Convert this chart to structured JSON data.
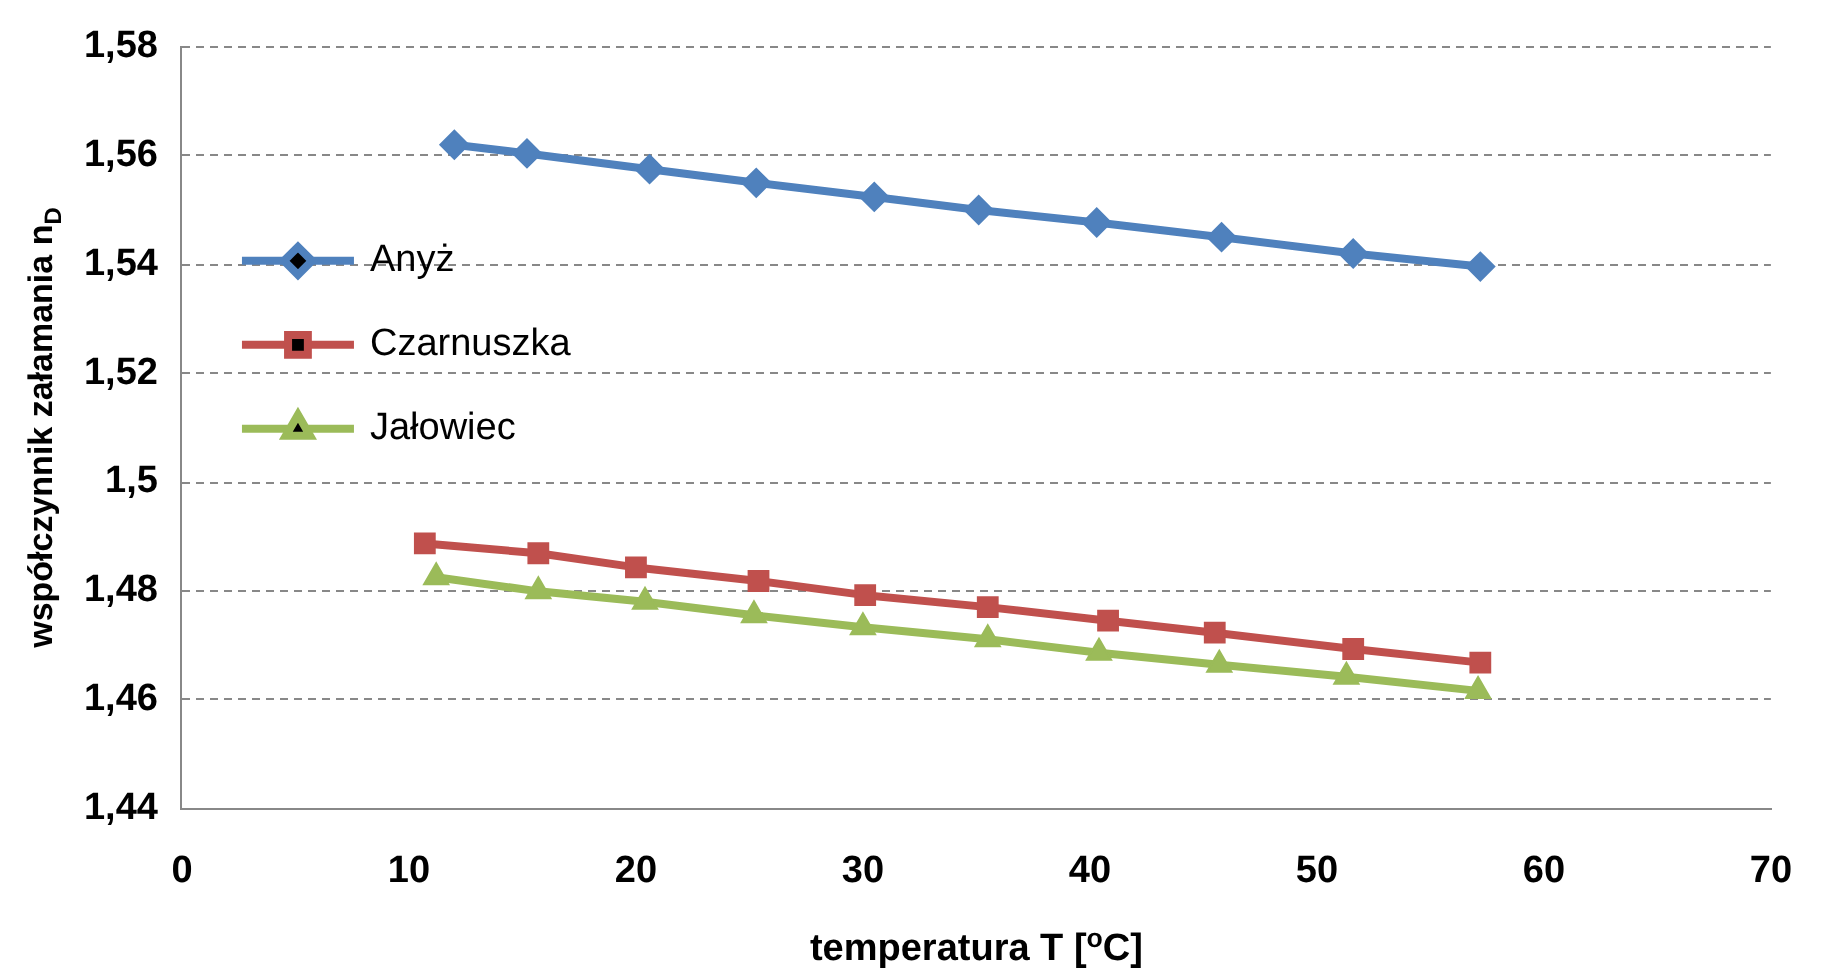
{
  "chart_data": {
    "type": "line",
    "xlabel": "temperatura T [$^{o}$C]",
    "ylabel": "współczynnik załamania n$_{D}$",
    "xlim": [
      0,
      70
    ],
    "xticks": [
      0,
      10,
      20,
      30,
      40,
      50,
      60,
      70
    ],
    "ylim": [
      1.44,
      1.58
    ],
    "yticks": [
      {
        "value": 1.44,
        "label": "1,44"
      },
      {
        "value": 1.46,
        "label": "1,46"
      },
      {
        "value": 1.48,
        "label": "1,48"
      },
      {
        "value": 1.5,
        "label": "1,5"
      },
      {
        "value": 1.52,
        "label": "1,52"
      },
      {
        "value": 1.54,
        "label": "1,54"
      },
      {
        "value": 1.56,
        "label": "1,56"
      },
      {
        "value": 1.58,
        "label": "1,58"
      }
    ],
    "grid": "y",
    "legend": "left",
    "line_style": "solid",
    "series": [
      {
        "name": "Anyż",
        "color": "#4f81bd",
        "marker": "diamond",
        "x": [
          12.0,
          15.2,
          20.6,
          25.3,
          30.5,
          35.1,
          40.3,
          45.8,
          51.6,
          57.2
        ],
        "values": [
          1.562,
          1.5604,
          1.5575,
          1.555,
          1.5524,
          1.55,
          1.5477,
          1.545,
          1.542,
          1.5396
        ]
      },
      {
        "name": "Czarnuszka",
        "color": "#c0504d",
        "marker": "square",
        "x": [
          10.7,
          15.7,
          20.0,
          25.4,
          30.1,
          35.5,
          40.8,
          45.5,
          51.6,
          57.2
        ],
        "values": [
          1.4887,
          1.4869,
          1.4843,
          1.4818,
          1.4792,
          1.477,
          1.4745,
          1.4723,
          1.4693,
          1.4668
        ]
      },
      {
        "name": "Jałowiec",
        "color": "#9bbb59",
        "marker": "triangle",
        "x": [
          11.2,
          15.7,
          20.4,
          25.2,
          30.0,
          35.5,
          40.4,
          45.7,
          51.3,
          57.1
        ],
        "values": [
          1.4825,
          1.4799,
          1.478,
          1.4755,
          1.4733,
          1.4711,
          1.4686,
          1.4664,
          1.4642,
          1.4616
        ]
      }
    ]
  }
}
